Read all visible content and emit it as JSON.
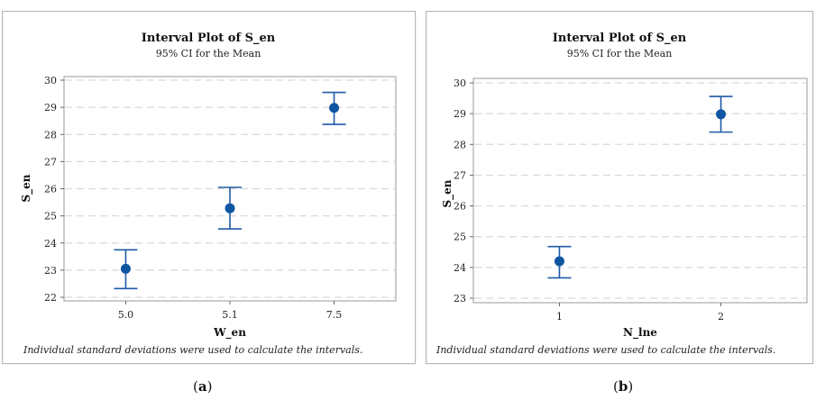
{
  "chart_data": [
    {
      "type": "interval",
      "title": "Interval Plot of S_en",
      "subtitle": "95% CI for the Mean",
      "xlabel": "W_en",
      "ylabel": "S_en",
      "categories": [
        "5.0",
        "5.1",
        "7.5"
      ],
      "means": [
        23.05,
        25.28,
        28.98
      ],
      "lower": [
        22.32,
        24.52,
        28.37
      ],
      "upper": [
        23.75,
        26.05,
        29.55
      ],
      "ylim": [
        22,
        30
      ],
      "yticks": [
        "22",
        "23",
        "24",
        "25",
        "26",
        "27",
        "28",
        "29",
        "30"
      ],
      "grid": "dashed horizontal",
      "footnote": "Individual standard deviations were used to calculate the intervals.",
      "caption_label": "(",
      "caption_letter": "a",
      "caption_close": ")"
    },
    {
      "type": "interval",
      "title": "Interval Plot of S_en",
      "subtitle": "95% CI for the Mean",
      "xlabel": "N_lne",
      "ylabel": "S_en",
      "categories": [
        "1",
        "2"
      ],
      "means": [
        24.2,
        28.98
      ],
      "lower": [
        23.66,
        28.4
      ],
      "upper": [
        24.68,
        29.56
      ],
      "ylim": [
        23,
        30
      ],
      "yticks": [
        "23",
        "24",
        "25",
        "26",
        "27",
        "28",
        "29",
        "30"
      ],
      "grid": "dashed horizontal",
      "footnote": "Individual standard deviations were used to calculate the intervals.",
      "caption_label": "(",
      "caption_letter": "b",
      "caption_close": ")"
    }
  ],
  "colors": {
    "interval": "#1f5aa6",
    "mean_point": "#0e55a2",
    "grid": "#d9d9d9"
  }
}
